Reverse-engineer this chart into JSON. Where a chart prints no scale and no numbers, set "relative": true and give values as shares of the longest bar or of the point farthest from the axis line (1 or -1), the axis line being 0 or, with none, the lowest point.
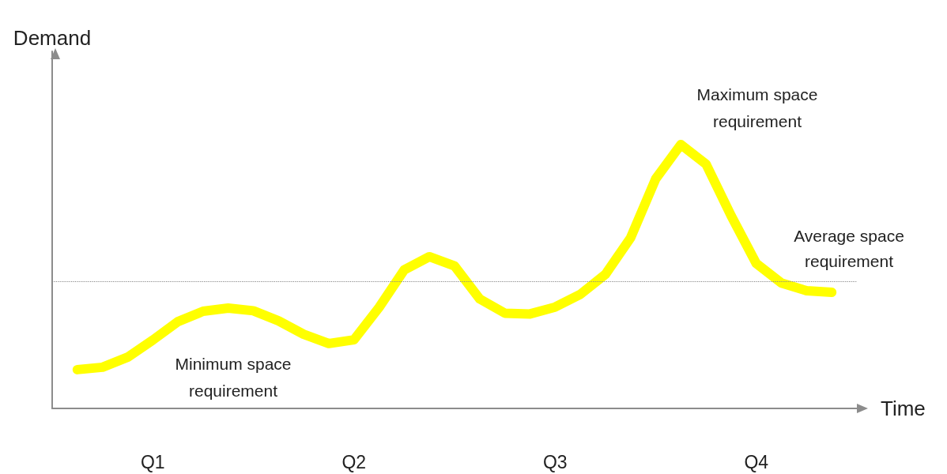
{
  "chart_data": {
    "type": "line",
    "relative": true,
    "xlabel": "Time",
    "ylabel": "Demand",
    "categories": [
      null,
      null,
      null,
      null,
      "Q1",
      null,
      null,
      null,
      null,
      null,
      null,
      null,
      "Q2",
      null,
      null,
      null,
      null,
      null,
      null,
      null,
      "Q3",
      null,
      null,
      null,
      null,
      null,
      null,
      null,
      "Q4",
      null,
      null,
      null,
      null
    ],
    "series": [
      {
        "color": "#ffff00",
        "values": [
          null,
          0.147,
          0.156,
          0.194,
          0.259,
          0.329,
          0.368,
          0.38,
          0.37,
          0.332,
          0.281,
          0.246,
          0.26,
          0.383,
          0.525,
          0.575,
          0.54,
          0.415,
          0.361,
          0.358,
          0.384,
          0.432,
          0.508,
          0.646,
          0.87,
          1,
          0.926,
          0.73,
          0.549,
          0.475,
          0.446,
          0.44,
          null
        ]
      }
    ],
    "ref_lines": [
      {
        "axis": "y",
        "value": 0.48,
        "label": "Average space requirement",
        "color": "#888888",
        "line_style": "dotted"
      }
    ],
    "annotations": [
      "Minimum space requirement",
      "Maximum space requirement"
    ],
    "grid": false,
    "line_style": "solid"
  }
}
